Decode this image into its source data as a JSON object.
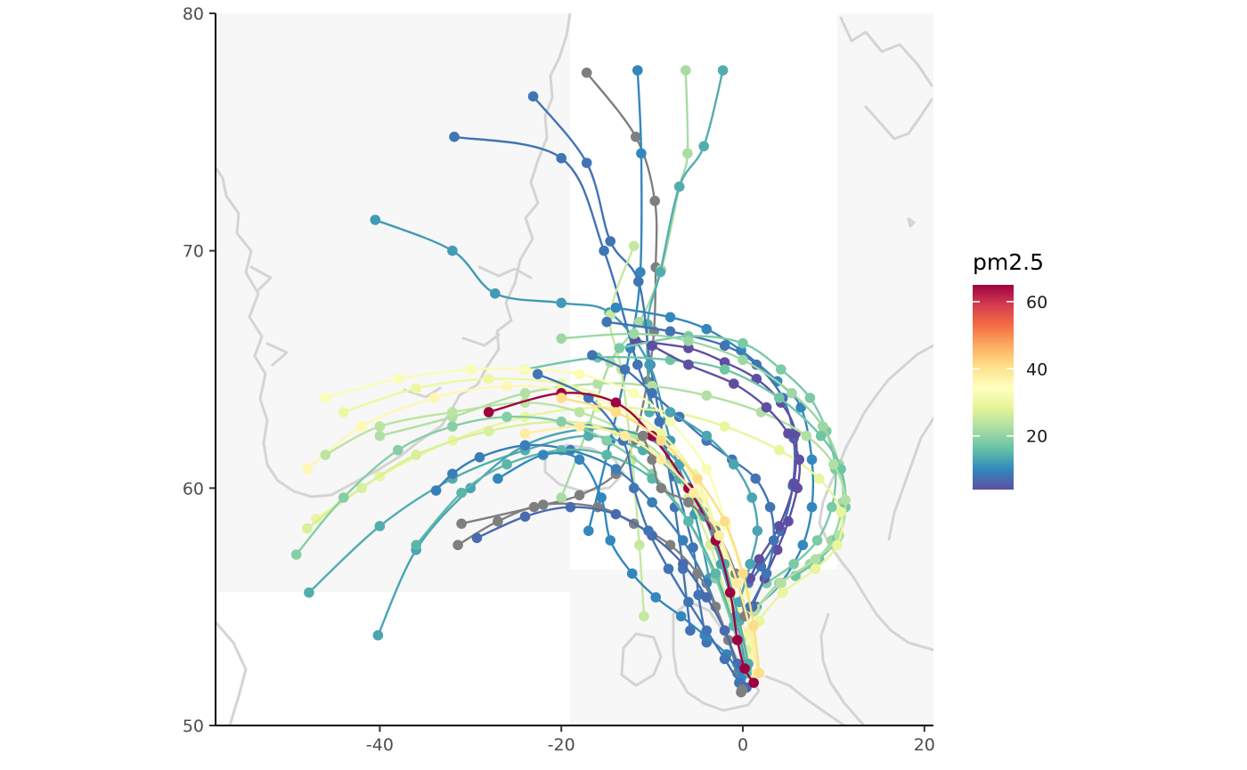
{
  "colors": {
    "panel_background": "#f7f7f7",
    "land_outline": "#d4d4d4",
    "axis_line": "#000000",
    "missing_value": "#7f7f7f",
    "palette": [
      "#5E4FA2",
      "#3288BD",
      "#66C2A5",
      "#ABDDA4",
      "#E6F598",
      "#FFFFBF",
      "#FEE08B",
      "#FDAE61",
      "#F46D43",
      "#D53E4F",
      "#9E0142"
    ]
  },
  "chart_data": {
    "type": "map-trajectories",
    "xlabel": "",
    "ylabel": "",
    "xlim": [
      -58,
      21
    ],
    "ylim": [
      50,
      80
    ],
    "x_ticks": [
      {
        "value": -40,
        "label": "-40"
      },
      {
        "value": -20,
        "label": "-20"
      },
      {
        "value": 0,
        "label": "0"
      },
      {
        "value": 20,
        "label": "20"
      }
    ],
    "y_ticks": [
      {
        "value": 50,
        "label": "50"
      },
      {
        "value": 60,
        "label": "60"
      },
      {
        "value": 70,
        "label": "70"
      },
      {
        "value": 80,
        "label": "80"
      }
    ],
    "grid": false,
    "legend": {
      "title": "pm2.5",
      "position": "right",
      "type": "colorbar",
      "range": [
        4,
        65
      ],
      "ticks": [
        {
          "value": 20,
          "label": "20"
        },
        {
          "value": 40,
          "label": "40"
        },
        {
          "value": 60,
          "label": "60"
        }
      ]
    },
    "receptor": {
      "lon": -0.1,
      "lat": 51.5
    },
    "trajectories": [
      {
        "pm25": null,
        "lon": [
          -17.2,
          -11.8,
          -9.7,
          -9.6,
          -9.8,
          -10.5,
          -12.0,
          -14.0,
          -18.0,
          -23.0,
          -31.0
        ],
        "lat": [
          77.5,
          74.8,
          72.1,
          69.3,
          66.6,
          64.5,
          62.0,
          60.6,
          59.7,
          59.2,
          58.5
        ]
      },
      {
        "pm25": 10,
        "lon": [
          -11.6,
          -11.2,
          -11.3,
          -12.4,
          -14.6,
          -17.0
        ],
        "lat": [
          77.6,
          74.1,
          69.1,
          65.9,
          62.0,
          58.2
        ]
      },
      {
        "pm25": 22,
        "lon": [
          -6.3,
          -6.1,
          -7.0,
          -9.0,
          -11.4,
          -14.6,
          -17.0,
          -20.0
        ],
        "lat": [
          77.6,
          74.1,
          72.7,
          69.2,
          67.0,
          65.3,
          62.6,
          59.6
        ]
      },
      {
        "pm25": 14,
        "lon": [
          -2.2,
          -4.3,
          -7.0,
          -9.1,
          -10.5,
          -10.3
        ],
        "lat": [
          77.6,
          74.4,
          72.7,
          69.1,
          66.9,
          63.2
        ]
      },
      {
        "pm25": 8,
        "lon": [
          -23.1,
          -17.2,
          -14.6,
          -11.5,
          -10.2,
          -8.7,
          -7.5,
          -6.6,
          -5.8
        ],
        "lat": [
          76.5,
          73.7,
          70.4,
          68.7,
          65.2,
          62.0,
          59.2,
          56.6,
          54.0
        ]
      },
      {
        "pm25": 8,
        "lon": [
          -31.8,
          -20.0,
          -15.3,
          -11.6,
          -9.2,
          -7.6,
          -5.5,
          -4.9,
          -4.0
        ],
        "lat": [
          74.8,
          73.9,
          70.0,
          65.2,
          62.8,
          60.5,
          57.5,
          55.5,
          53.5
        ]
      },
      {
        "pm25": 12,
        "lon": [
          -40.5,
          -32.0,
          -27.3,
          -20.0,
          -14.7,
          -10.3,
          -8.0,
          -5.3,
          -3.7
        ],
        "lat": [
          71.3,
          70.0,
          68.2,
          67.8,
          67.4,
          65.2,
          62.0,
          58.9,
          56.2
        ]
      },
      {
        "pm25": 25,
        "lon": [
          -12.0,
          -14.6,
          -13.4,
          -12.2,
          -11.4,
          -10.9
        ],
        "lat": [
          70.2,
          67.3,
          65.0,
          61.2,
          57.6,
          54.6
        ]
      },
      {
        "pm25": 10,
        "lon": [
          -14.0,
          -8.0,
          -4.0,
          -0.2,
          3.8,
          6.4,
          7.6,
          7.6,
          6.6,
          4.2,
          1.5
        ],
        "lat": [
          67.6,
          67.2,
          66.7,
          65.8,
          64.5,
          63.4,
          61.2,
          59.2,
          57.6,
          56.0,
          55.0
        ]
      },
      {
        "pm25": 8,
        "lon": [
          -15.0,
          -8.0,
          -2.0,
          1.5,
          4.4,
          5.6,
          5.5,
          4.2,
          2.0,
          0.6
        ],
        "lat": [
          67.0,
          66.6,
          66.0,
          65.2,
          63.8,
          62.1,
          60.1,
          58.2,
          56.7,
          56.0
        ]
      },
      {
        "pm25": 4,
        "lon": [
          -11.8,
          -6.0,
          -2.0,
          1.5,
          4.2,
          5.8,
          5.6,
          4.0,
          1.8,
          0.8
        ],
        "lat": [
          66.2,
          65.9,
          65.3,
          64.6,
          63.6,
          62.3,
          60.2,
          58.4,
          57.0,
          56.2
        ]
      },
      {
        "pm25": 18,
        "lon": [
          -13.6,
          -6.0,
          0.0,
          4.2,
          7.4,
          9.2,
          10.2,
          9.8,
          8.2,
          5.6,
          2.6
        ],
        "lat": [
          65.9,
          66.4,
          66.1,
          65.0,
          63.8,
          62.4,
          60.8,
          59.2,
          57.8,
          56.8,
          56.0
        ]
      },
      {
        "pm25": 21,
        "lon": [
          -20.0,
          -12.0,
          -6.0,
          0.0,
          5.4,
          8.8,
          10.6,
          11.0,
          9.8,
          7.4,
          4.0,
          1.4
        ],
        "lat": [
          66.3,
          66.5,
          66.2,
          65.4,
          64.0,
          62.6,
          61.0,
          59.4,
          57.8,
          56.8,
          56.0,
          54.9
        ]
      },
      {
        "pm25": 17,
        "lon": [
          -24.0,
          -16.0,
          -8.0,
          -2.0,
          4.0,
          8.6,
          10.8,
          11.3,
          10.4,
          8.4,
          5.8
        ],
        "lat": [
          65.0,
          65.5,
          65.4,
          65.0,
          63.8,
          62.2,
          60.8,
          59.2,
          57.9,
          57.0,
          56.3
        ]
      },
      {
        "pm25": 23,
        "lon": [
          -40.0,
          -32.0,
          -24.0,
          -16.0,
          -10.0,
          -4.0,
          2.0,
          7.0,
          10.0,
          11.3,
          10.6,
          8.0,
          4.2,
          1.2
        ],
        "lat": [
          62.2,
          63.0,
          64.0,
          64.4,
          64.3,
          63.9,
          63.2,
          62.2,
          61.0,
          59.5,
          58.0,
          57.0,
          56.0,
          54.8
        ]
      },
      {
        "pm25": 29,
        "lon": [
          -47.0,
          -40.0,
          -32.0,
          -24.0,
          -16.0,
          -8.0,
          -2.0,
          4.0,
          8.4,
          10.8,
          10.4,
          8.0,
          4.4,
          1.8,
          1.0
        ],
        "lat": [
          58.7,
          60.5,
          62.0,
          63.0,
          63.4,
          63.2,
          62.6,
          61.6,
          60.4,
          59.0,
          57.6,
          56.6,
          55.6,
          54.4,
          53.4
        ]
      },
      {
        "pm25": 33,
        "lon": [
          -46.0,
          -38.0,
          -30.0,
          -24.0,
          -18.0,
          -12.0,
          -8.0,
          -4.0,
          -1.8,
          0.4,
          0.8
        ],
        "lat": [
          63.8,
          64.6,
          65.0,
          65.0,
          64.8,
          64.0,
          62.8,
          60.8,
          58.4,
          55.6,
          53.2
        ]
      },
      {
        "pm25": 30,
        "lon": [
          -44.0,
          -36.0,
          -28.0,
          -20.0,
          -14.0,
          -9.0,
          -5.4,
          -3.0,
          -1.2,
          0.2,
          0.8
        ],
        "lat": [
          63.2,
          64.2,
          64.6,
          64.4,
          63.6,
          62.3,
          60.6,
          58.4,
          56.0,
          53.8,
          52.2
        ]
      },
      {
        "pm25": 36,
        "lon": [
          -48.0,
          -42.0,
          -34.0,
          -26.0,
          -18.0,
          -12.0,
          -7.8,
          -4.4,
          -2.0,
          -0.4,
          0.8
        ],
        "lat": [
          60.8,
          62.6,
          63.8,
          64.3,
          64.0,
          63.0,
          61.6,
          59.6,
          57.2,
          54.8,
          52.8
        ]
      },
      {
        "pm25": 24,
        "lon": [
          -46.0,
          -40.0,
          -32.0,
          -24.0,
          -18.0,
          -12.0,
          -8.0,
          -5.0,
          -3.0,
          -1.4,
          -0.2
        ],
        "lat": [
          61.4,
          62.6,
          63.2,
          63.6,
          63.2,
          62.2,
          61.0,
          59.4,
          57.6,
          55.6,
          53.6
        ]
      },
      {
        "pm25": 27,
        "lon": [
          -48.0,
          -42.0,
          -36.0,
          -28.0,
          -20.0,
          -14.0,
          -9.0,
          -6.0,
          -3.6,
          -1.8,
          0.4
        ],
        "lat": [
          58.3,
          60.0,
          61.4,
          62.4,
          62.8,
          62.4,
          61.2,
          59.6,
          57.6,
          55.4,
          53.2
        ]
      },
      {
        "pm25": 14,
        "lon": [
          -47.8,
          -40.0,
          -32.0,
          -24.0,
          -17.0,
          -11.0,
          -7.0,
          -4.2,
          -2.0,
          -0.4,
          0.6
        ],
        "lat": [
          55.6,
          58.4,
          60.4,
          61.6,
          62.2,
          61.6,
          60.4,
          58.8,
          56.8,
          54.4,
          52.6
        ]
      },
      {
        "pm25": 13,
        "lon": [
          -40.2,
          -36.0,
          -30.0,
          -24.0,
          -17.0,
          -11.0,
          -7.0,
          -4.4,
          -2.4,
          -0.8,
          0.4
        ],
        "lat": [
          53.8,
          57.4,
          60.0,
          61.8,
          62.5,
          62.2,
          61.0,
          59.0,
          56.8,
          54.6,
          52.4
        ]
      },
      {
        "pm25": 19,
        "lon": [
          -49.2,
          -44.0,
          -38.0,
          -32.0,
          -26.0,
          -20.0,
          -15.0,
          -10.0,
          -6.0,
          -3.0,
          -0.6
        ],
        "lat": [
          57.2,
          59.6,
          61.6,
          62.6,
          63.0,
          62.8,
          62.0,
          60.6,
          58.6,
          56.2,
          53.6
        ]
      },
      {
        "pm25": 9,
        "lon": [
          -33.8,
          -32.0,
          -29.0,
          -24.0,
          -19.0,
          -14.0,
          -10.0,
          -6.6,
          -4.0,
          -2.0,
          -0.4
        ],
        "lat": [
          59.9,
          60.6,
          61.3,
          61.8,
          61.6,
          60.8,
          59.4,
          57.8,
          56.0,
          54.0,
          52.4
        ]
      },
      {
        "pm25": 15,
        "lon": [
          -36.0,
          -31.0,
          -26.0,
          -20.0,
          -15.0,
          -10.0,
          -6.0,
          -3.0,
          -1.0,
          0.4
        ],
        "lat": [
          57.6,
          59.8,
          61.0,
          61.6,
          61.4,
          60.4,
          58.6,
          56.4,
          54.2,
          52.2
        ]
      },
      {
        "pm25": null,
        "lon": [
          -31.4,
          -27.0,
          -22.0,
          -16.0,
          -12.0,
          -8.0,
          -5.0,
          -3.0,
          -1.6,
          -0.6,
          -0.2
        ],
        "lat": [
          57.6,
          58.6,
          59.3,
          59.2,
          58.5,
          57.6,
          56.4,
          55.0,
          53.6,
          52.2,
          51.4
        ]
      },
      {
        "pm25": 7,
        "lon": [
          -29.3,
          -24.0,
          -19.0,
          -14.0,
          -10.0,
          -6.6,
          -4.0,
          -2.0,
          -0.6,
          0.4
        ],
        "lat": [
          57.9,
          58.8,
          59.2,
          58.9,
          58.0,
          56.8,
          55.4,
          54.0,
          52.6,
          51.6
        ]
      },
      {
        "pm25": 10,
        "lon": [
          -27.0,
          -22.0,
          -18.0,
          -15.6,
          -14.6,
          -12.2,
          -9.6,
          -6.8,
          -4.2,
          -1.8,
          -0.2
        ],
        "lat": [
          60.4,
          61.4,
          61.2,
          59.6,
          57.8,
          56.4,
          55.4,
          54.6,
          53.8,
          53.0,
          52.0
        ]
      },
      {
        "pm25": 8,
        "lon": [
          -22.6,
          -17.0,
          -13.2,
          -12.0,
          -10.4,
          -8.2,
          -6.0,
          -4.0,
          -2.0,
          -0.4
        ],
        "lat": [
          64.8,
          63.8,
          62.0,
          60.0,
          58.2,
          56.6,
          55.2,
          54.0,
          52.8,
          51.8
        ]
      },
      {
        "pm25": 65,
        "lon": [
          -28.0,
          -20.0,
          -14.0,
          -10.0,
          -6.0,
          -3.0,
          -1.4,
          -0.6,
          0.2,
          1.2
        ],
        "lat": [
          63.2,
          64.0,
          63.6,
          62.2,
          60.0,
          57.8,
          55.6,
          53.6,
          52.4,
          51.8
        ]
      },
      {
        "pm25": 4,
        "lon": [
          -10.0,
          -6.0,
          -1.0,
          2.6,
          5.0,
          6.2,
          6.0,
          5.0,
          3.8,
          2.4,
          1.0
        ],
        "lat": [
          66.0,
          65.2,
          64.4,
          63.4,
          62.3,
          61.2,
          60.0,
          58.6,
          57.4,
          56.2,
          55.0
        ]
      },
      {
        "pm25": 8,
        "lon": [
          -16.6,
          -13.0,
          -10.0,
          -7.0,
          -4.0,
          -1.2,
          1.4,
          3.0,
          3.4,
          2.6,
          0.8
        ],
        "lat": [
          65.6,
          65.0,
          64.0,
          63.0,
          62.0,
          61.2,
          60.4,
          59.2,
          57.8,
          56.4,
          55.0
        ]
      },
      {
        "pm25": 13,
        "lon": [
          -8.0,
          -4.0,
          -1.0,
          1.0,
          1.6,
          0.8,
          -0.4
        ],
        "lat": [
          63.2,
          62.2,
          61.0,
          59.6,
          58.2,
          56.8,
          55.2
        ]
      },
      {
        "pm25": null,
        "lon": [
          -11.0,
          -10.0,
          -9.0,
          -6.0,
          -3.0,
          -0.8,
          0.2
        ],
        "lat": [
          62.2,
          61.2,
          60.0,
          59.4,
          58.2,
          56.4,
          54.6
        ]
      },
      {
        "pm25": 38,
        "lon": [
          -24.0,
          -18.0,
          -13.0,
          -9.0,
          -5.4,
          -2.6,
          -0.6,
          0.8,
          1.6
        ],
        "lat": [
          62.3,
          62.6,
          62.2,
          61.2,
          59.8,
          58.0,
          56.0,
          54.0,
          52.2
        ]
      },
      {
        "pm25": 41,
        "lon": [
          -20.0,
          -14.0,
          -9.0,
          -5.0,
          -2.0,
          0.0,
          1.2,
          1.8
        ],
        "lat": [
          63.8,
          63.2,
          62.0,
          60.4,
          58.6,
          56.4,
          54.2,
          52.2
        ]
      }
    ]
  }
}
